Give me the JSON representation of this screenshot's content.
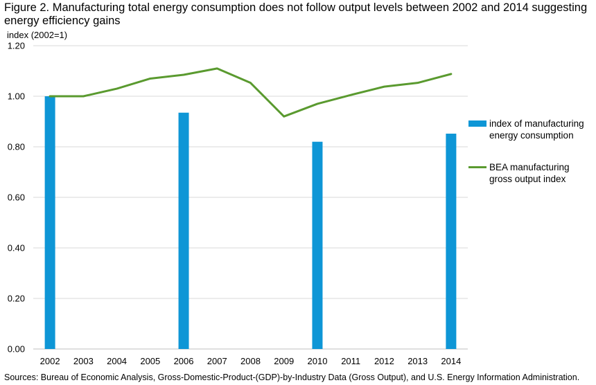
{
  "colors": {
    "bar": "#0e96d6",
    "line": "#5a9a2f",
    "grid": "#d9d9d9",
    "axis": "#bfbfbf"
  },
  "chart_data": {
    "type": "bar",
    "title": "Figure 2. Manufacturing total energy consumption does not follow output levels between 2002 and 2014 suggesting energy efficiency gains",
    "ylabel": "index (2002=1)",
    "xlabel": "",
    "ylim": [
      0,
      1.2
    ],
    "yticks": [
      "0.00",
      "0.20",
      "0.40",
      "0.60",
      "0.80",
      "1.00",
      "1.20"
    ],
    "categories": [
      "2002",
      "2003",
      "2004",
      "2005",
      "2006",
      "2007",
      "2008",
      "2009",
      "2010",
      "2011",
      "2012",
      "2013",
      "2014"
    ],
    "grid": true,
    "legend_position": "right",
    "series": [
      {
        "name": "index of manufacturing energy consumption",
        "kind": "bar",
        "values": [
          1.0,
          null,
          null,
          null,
          0.935,
          null,
          null,
          null,
          0.82,
          null,
          null,
          null,
          0.852
        ]
      },
      {
        "name": "BEA manufacturing gross output index",
        "kind": "line",
        "values": [
          1.0,
          1.0,
          1.03,
          1.07,
          1.085,
          1.11,
          1.053,
          0.92,
          0.97,
          1.005,
          1.038,
          1.053,
          1.088
        ]
      }
    ],
    "source": "Sources: Bureau of Economic Analysis, Gross-Domestic-Product-(GDP)-by-Industry Data (Gross Output), and U.S. Energy Information Administration."
  }
}
